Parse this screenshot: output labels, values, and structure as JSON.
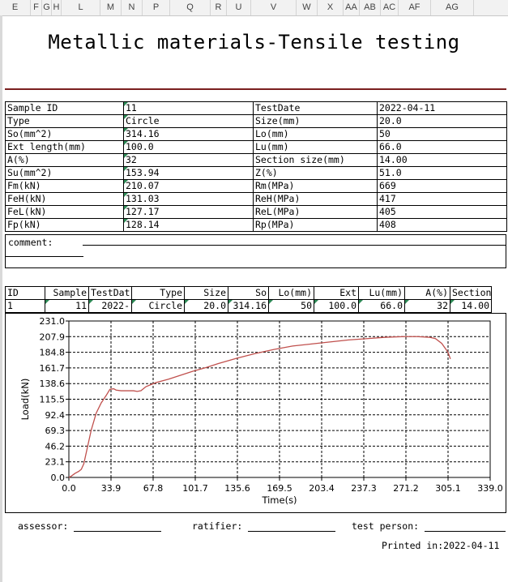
{
  "column_headers": [
    "E",
    "F",
    "G",
    "H",
    "L",
    "M",
    "N",
    "P",
    "Q",
    "R",
    "U",
    "V",
    "W",
    "X",
    "AA",
    "AB",
    "AC",
    "AF",
    "AG"
  ],
  "report": {
    "title": "Metallic materials-Tensile testing",
    "info_rows": [
      [
        "Sample ID",
        "11",
        "TestDate",
        "2022-04-11"
      ],
      [
        "Type",
        "Circle",
        "Size(mm)",
        "20.0"
      ],
      [
        "So(mm^2)",
        "314.16",
        "Lo(mm)",
        "50"
      ],
      [
        "Ext length(mm)",
        "100.0",
        "Lu(mm)",
        "66.0"
      ],
      [
        "A(%)",
        "32",
        "Section size(mm)",
        "14.00"
      ],
      [
        "Su(mm^2)",
        "153.94",
        "Z(%)",
        "51.0"
      ],
      [
        "Fm(kN)",
        "210.07",
        "Rm(MPa)",
        "669"
      ],
      [
        "FeH(kN)",
        "131.03",
        "ReH(MPa)",
        "417"
      ],
      [
        "FeL(kN)",
        "127.17",
        "ReL(MPa)",
        "405"
      ],
      [
        "Fp(kN)",
        "128.14",
        "Rp(MPa)",
        "408"
      ]
    ],
    "comment_label": "comment:",
    "results": {
      "headers": [
        "ID",
        "Sample",
        "TestDat",
        "Type",
        "Size",
        "So",
        "Lo(mm)",
        "Ext",
        "Lu(mm)",
        "A(%)",
        "Section"
      ],
      "row": [
        "1",
        "11",
        "2022-",
        "Circle",
        "20.0",
        "314.16",
        "50",
        "100.0",
        "66.0",
        "32",
        "14.00"
      ]
    },
    "footer": {
      "assessor": "assessor:",
      "ratifier": "ratifier:",
      "test_person": "test person:",
      "printed": "Printed in:2022-04-11"
    }
  },
  "chart_data": {
    "type": "line",
    "xlabel": "Time(s)",
    "ylabel": "Load(kN)",
    "xlim": [
      0,
      339
    ],
    "ylim": [
      0,
      231
    ],
    "x_ticks": [
      "0.0",
      "33.9",
      "67.8",
      "101.7",
      "135.6",
      "169.5",
      "203.4",
      "237.3",
      "271.2",
      "305.1",
      "339.0"
    ],
    "y_ticks": [
      "0.0",
      "23.1",
      "46.2",
      "69.3",
      "92.4",
      "115.5",
      "138.6",
      "161.7",
      "184.8",
      "207.9",
      "231.0"
    ],
    "grid": true,
    "line_color": "#c0504d",
    "series": [
      {
        "x": [
          0,
          2,
          5,
          8,
          10,
          12,
          15,
          18,
          22,
          26,
          30,
          33,
          36,
          38,
          42,
          48,
          52,
          55,
          58,
          62,
          66,
          70,
          80,
          90,
          100,
          110,
          120,
          135,
          150,
          165,
          180,
          195,
          210,
          225,
          240,
          255,
          270,
          280,
          290,
          295,
          300,
          305,
          307
        ],
        "y": [
          0,
          2,
          6,
          9,
          12,
          20,
          45,
          70,
          95,
          110,
          121,
          130,
          131,
          129,
          128,
          128,
          128,
          127,
          128,
          134,
          137,
          140,
          145,
          151,
          157,
          162,
          168,
          176,
          183,
          189,
          194,
          197,
          200,
          203,
          205,
          207,
          208,
          208,
          207,
          205,
          198,
          185,
          175
        ]
      }
    ]
  }
}
